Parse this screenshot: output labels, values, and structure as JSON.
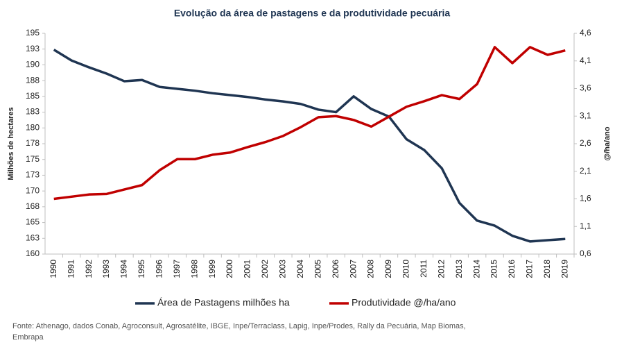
{
  "chart_data": {
    "type": "line",
    "title": "Evolução da área de pastagens e da produtividade pecuária",
    "y_label": "Milhões de hectares",
    "y2_label": "@/ha/ano",
    "categories": [
      "1990",
      "1991",
      "1992",
      "1993",
      "1994",
      "1995",
      "1996",
      "1997",
      "1998",
      "1999",
      "2000",
      "2001",
      "2002",
      "2003",
      "2004",
      "2005",
      "2006",
      "2007",
      "2008",
      "2009",
      "2010",
      "2011",
      "2012",
      "2013",
      "2014",
      "2015",
      "2016",
      "2017",
      "2018",
      "2019"
    ],
    "series": [
      {
        "name": "Área de Pastagens milhões ha",
        "color": "#1f3552",
        "axis": "y",
        "values": [
          192.4,
          190.7,
          189.6,
          188.6,
          187.4,
          187.6,
          186.5,
          186.2,
          185.9,
          185.5,
          185.2,
          184.9,
          184.5,
          184.2,
          183.8,
          182.9,
          182.5,
          185.0,
          183.0,
          181.8,
          178.2,
          176.5,
          173.6,
          168.1,
          165.3,
          164.5,
          162.9,
          162.0,
          162.2,
          162.4
        ]
      },
      {
        "name": "Produtividade  @/ha/ano",
        "color": "#c00000",
        "axis": "y2",
        "values": [
          1.6,
          1.64,
          1.68,
          1.69,
          1.77,
          1.85,
          2.12,
          2.32,
          2.32,
          2.4,
          2.44,
          2.54,
          2.63,
          2.74,
          2.9,
          3.08,
          3.1,
          3.03,
          2.91,
          3.09,
          3.27,
          3.37,
          3.48,
          3.41,
          3.68,
          4.35,
          4.06,
          4.35,
          4.21,
          4.29
        ]
      }
    ],
    "ylim": [
      160,
      195
    ],
    "yticks": [
      160,
      {
        "value": 162.5,
        "label": "163"
      },
      165,
      {
        "value": 167.5,
        "label": "168"
      },
      170,
      {
        "value": 172.5,
        "label": "173"
      },
      175,
      {
        "value": 177.5,
        "label": "178"
      },
      180,
      {
        "value": 182.5,
        "label": "183"
      },
      185,
      {
        "value": 187.5,
        "label": "188"
      },
      190,
      {
        "value": 192.5,
        "label": "193"
      },
      195
    ],
    "y2lim": [
      0.6,
      4.6
    ],
    "y2ticks": [
      {
        "value": 0.6,
        "label": "0,6"
      },
      {
        "value": 1.1,
        "label": "1,1"
      },
      {
        "value": 1.6,
        "label": "1,6"
      },
      {
        "value": 2.1,
        "label": "2,1"
      },
      {
        "value": 2.6,
        "label": "2,6"
      },
      {
        "value": 3.1,
        "label": "3,1"
      },
      {
        "value": 3.6,
        "label": "3,6"
      },
      {
        "value": 4.1,
        "label": "4,1"
      },
      {
        "value": 4.6,
        "label": "4,6"
      }
    ],
    "grid": false,
    "legend": "bottom",
    "source": "Fonte: Athenago, dados Conab, Agroconsult, Agrosatélite, IBGE, Inpe/Terraclass,  Lapig, Inpe/Prodes, Rally da Pecuária, Map Biomas, Embrapa"
  }
}
